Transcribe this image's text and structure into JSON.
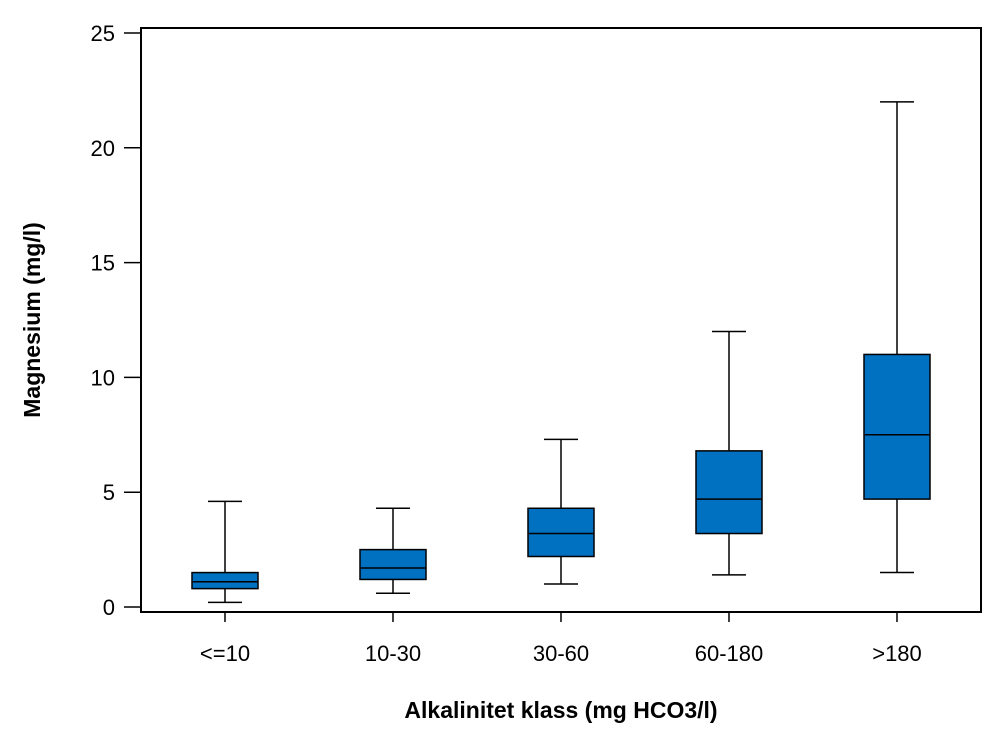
{
  "chart_data": {
    "type": "boxplot",
    "title": "",
    "xlabel": "Alkalinitet klass (mg HCO3/l)",
    "ylabel": "Magnesium (mg/l)",
    "ylim": [
      0,
      25
    ],
    "yticks": [
      0,
      5,
      10,
      15,
      20,
      25
    ],
    "ytick_labels": [
      "0",
      "5",
      "10",
      "15",
      "20",
      "25"
    ],
    "grid": false,
    "legend": "none",
    "box_color": "#0070C0",
    "line_color": "#000000",
    "categories": [
      "<=10",
      "10-30",
      "30-60",
      "60-180",
      ">180"
    ],
    "boxes": [
      {
        "category": "<=10",
        "min": 0.2,
        "q1": 0.8,
        "median": 1.1,
        "q3": 1.5,
        "max": 4.6
      },
      {
        "category": "10-30",
        "min": 0.6,
        "q1": 1.2,
        "median": 1.7,
        "q3": 2.5,
        "max": 4.3
      },
      {
        "category": "30-60",
        "min": 1.0,
        "q1": 2.2,
        "median": 3.2,
        "q3": 4.3,
        "max": 7.3
      },
      {
        "category": "60-180",
        "min": 1.4,
        "q1": 3.2,
        "median": 4.7,
        "q3": 6.8,
        "max": 12.0
      },
      {
        "category": ">180",
        "min": 1.5,
        "q1": 4.7,
        "median": 7.5,
        "q3": 11.0,
        "max": 22.0
      }
    ]
  }
}
